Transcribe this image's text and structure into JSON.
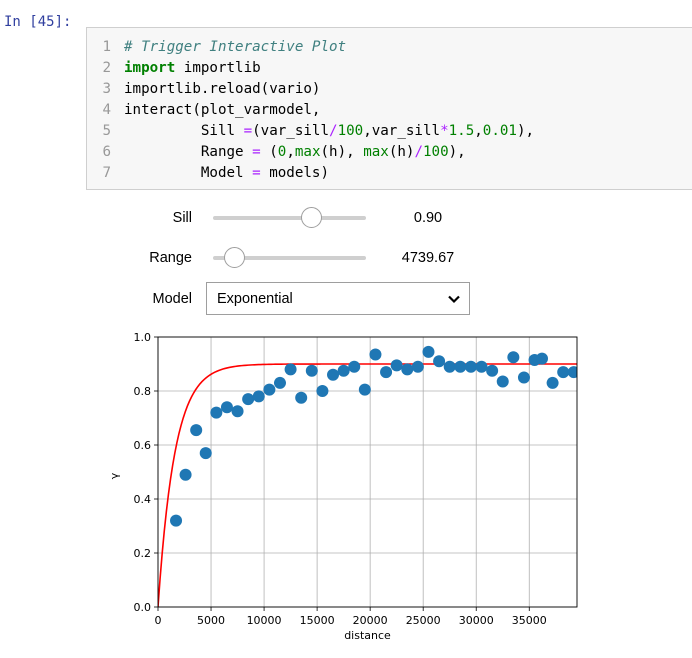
{
  "cell": {
    "prompt": "In [45]:",
    "lines": [
      {
        "n": "1",
        "parts": [
          {
            "c": "cm",
            "t": "# Trigger Interactive Plot"
          }
        ]
      },
      {
        "n": "2",
        "parts": [
          {
            "c": "kw",
            "t": "import"
          },
          {
            "c": "txt",
            "t": " importlib"
          }
        ]
      },
      {
        "n": "3",
        "parts": [
          {
            "c": "txt",
            "t": "importlib.reload(vario)"
          }
        ]
      },
      {
        "n": "4",
        "parts": [
          {
            "c": "txt",
            "t": "interact(plot_varmodel,"
          }
        ]
      },
      {
        "n": "5",
        "parts": [
          {
            "c": "txt",
            "t": "         Sill "
          },
          {
            "c": "op",
            "t": "="
          },
          {
            "c": "txt",
            "t": "(var_sill"
          },
          {
            "c": "op",
            "t": "/"
          },
          {
            "c": "num",
            "t": "100"
          },
          {
            "c": "txt",
            "t": ",var_sill"
          },
          {
            "c": "op",
            "t": "*"
          },
          {
            "c": "num",
            "t": "1.5"
          },
          {
            "c": "txt",
            "t": ","
          },
          {
            "c": "num",
            "t": "0.01"
          },
          {
            "c": "txt",
            "t": "),"
          }
        ]
      },
      {
        "n": "6",
        "parts": [
          {
            "c": "txt",
            "t": "         Range "
          },
          {
            "c": "op",
            "t": "="
          },
          {
            "c": "txt",
            "t": " ("
          },
          {
            "c": "num",
            "t": "0"
          },
          {
            "c": "txt",
            "t": ","
          },
          {
            "c": "bi",
            "t": "max"
          },
          {
            "c": "txt",
            "t": "(h), "
          },
          {
            "c": "bi",
            "t": "max"
          },
          {
            "c": "txt",
            "t": "(h)"
          },
          {
            "c": "op",
            "t": "/"
          },
          {
            "c": "num",
            "t": "100"
          },
          {
            "c": "txt",
            "t": "),"
          }
        ]
      },
      {
        "n": "7",
        "parts": [
          {
            "c": "txt",
            "t": "         Model "
          },
          {
            "c": "op",
            "t": "="
          },
          {
            "c": "txt",
            "t": " models)"
          }
        ]
      }
    ]
  },
  "widgets": {
    "sill": {
      "label": "Sill",
      "value_text": "0.90",
      "fraction": 0.64
    },
    "range": {
      "label": "Range",
      "value_text": "4739.67",
      "fraction": 0.14
    },
    "model": {
      "label": "Model",
      "selected": "Exponential"
    }
  },
  "chart_data": {
    "type": "scatter",
    "xlabel": "distance",
    "ylabel": "γ",
    "xlim": [
      0,
      39500
    ],
    "ylim": [
      0,
      1.0
    ],
    "xticks": [
      0,
      5000,
      10000,
      15000,
      20000,
      25000,
      30000,
      35000
    ],
    "yticks": [
      0.0,
      0.2,
      0.4,
      0.6,
      0.8,
      1.0
    ],
    "grid": true,
    "point_color": "#1f77b4",
    "model_color": "#ff0000",
    "points": {
      "x": [
        1700,
        2600,
        3600,
        4500,
        5500,
        6500,
        7500,
        8500,
        9500,
        10500,
        11500,
        12500,
        13500,
        14500,
        15500,
        16500,
        17500,
        18500,
        19500,
        20500,
        21500,
        22500,
        23500,
        24500,
        25500,
        26500,
        27500,
        28500,
        29500,
        30500,
        31500,
        32500,
        33500,
        34500,
        35500,
        36200,
        37200,
        38200,
        39200
      ],
      "y": [
        0.32,
        0.49,
        0.655,
        0.57,
        0.72,
        0.74,
        0.725,
        0.77,
        0.78,
        0.805,
        0.83,
        0.88,
        0.775,
        0.875,
        0.8,
        0.86,
        0.875,
        0.89,
        0.805,
        0.935,
        0.87,
        0.895,
        0.88,
        0.89,
        0.945,
        0.91,
        0.89,
        0.89,
        0.89,
        0.89,
        0.875,
        0.835,
        0.925,
        0.85,
        0.915,
        0.92,
        0.83,
        0.87,
        0.87
      ]
    },
    "model": {
      "kind": "exponential",
      "sill": 0.9,
      "range": 4739.67
    }
  }
}
